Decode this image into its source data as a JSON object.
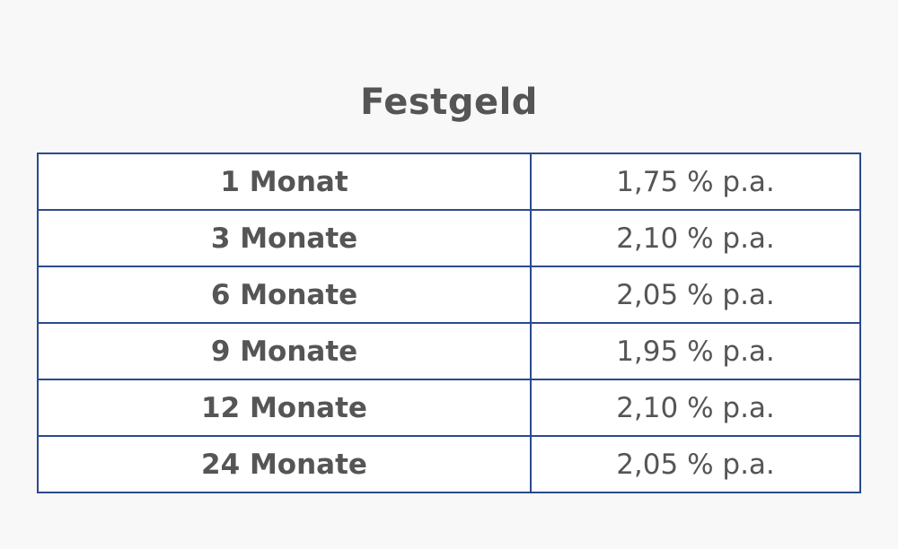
{
  "title": "Festgeld",
  "table": {
    "rows": [
      {
        "term": "1 Monat",
        "rate": "1,75 % p.a."
      },
      {
        "term": "3 Monate",
        "rate": "2,10 % p.a."
      },
      {
        "term": "6 Monate",
        "rate": "2,05 % p.a."
      },
      {
        "term": "9 Monate",
        "rate": "1,95 % p.a."
      },
      {
        "term": "12 Monate",
        "rate": "2,10 % p.a."
      },
      {
        "term": "24 Monate",
        "rate": "2,05 % p.a."
      }
    ]
  },
  "colors": {
    "background": "#f8f8f8",
    "text": "#555555",
    "border": "#2a4a8c",
    "cell": "#ffffff"
  }
}
